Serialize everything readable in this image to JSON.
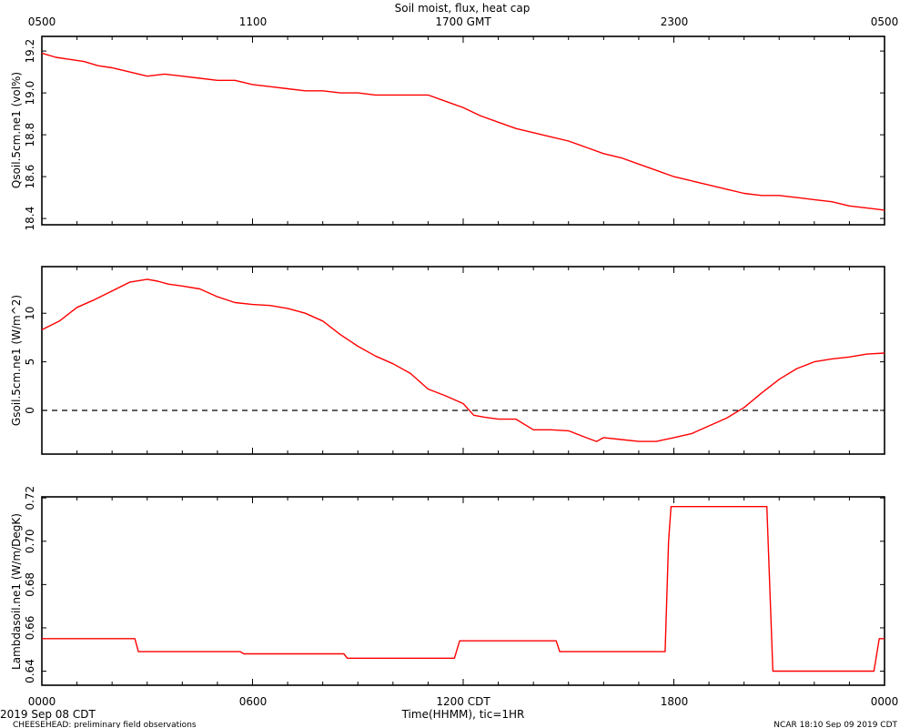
{
  "title": "Soil moist, flux, heat cap",
  "top_axis": {
    "ticks": [
      "0500",
      "1100",
      "1700 GMT",
      "2300",
      "0500"
    ]
  },
  "bottom_axis": {
    "ticks": [
      "0000",
      "0600",
      "1200 CDT",
      "1800",
      "0000"
    ],
    "label": "Time(HHMM), tic=1HR",
    "date_label": "2019 Sep 08 CDT"
  },
  "footer": {
    "left": "CHEESEHEAD: preliminary field observations",
    "right": "NCAR 18:10 Sep 09 2019 CDT"
  },
  "line_color": "#ff0000",
  "chart_data": [
    {
      "type": "line",
      "ylabel": "Qsoil.5cm.ne1 (vol%)",
      "ylim": [
        18.37,
        19.27
      ],
      "yticks": [
        18.4,
        18.6,
        18.8,
        19.0,
        19.2
      ],
      "ytick_labels": [
        "18.4",
        "18.6",
        "18.8",
        "19.0",
        "19.2"
      ],
      "xlim": [
        0,
        24
      ],
      "zero_line": false,
      "x": [
        0,
        0.4,
        0.8,
        1.2,
        1.6,
        2.0,
        2.5,
        3.0,
        3.5,
        4.0,
        4.5,
        5.0,
        5.5,
        6.0,
        6.5,
        7.0,
        7.5,
        8.0,
        8.5,
        9.0,
        9.5,
        10.0,
        10.5,
        11.0,
        11.5,
        12.0,
        12.5,
        13.0,
        13.5,
        14.0,
        14.5,
        15.0,
        15.5,
        16.0,
        16.5,
        17.0,
        17.5,
        18.0,
        18.5,
        19.0,
        19.5,
        20.0,
        20.5,
        21.0,
        21.5,
        22.0,
        22.5,
        23.0,
        23.5,
        24.0
      ],
      "y": [
        19.19,
        19.17,
        19.16,
        19.15,
        19.13,
        19.12,
        19.1,
        19.08,
        19.09,
        19.08,
        19.07,
        19.06,
        19.06,
        19.04,
        19.03,
        19.02,
        19.01,
        19.01,
        19.0,
        19.0,
        18.99,
        18.99,
        18.99,
        18.99,
        18.96,
        18.93,
        18.89,
        18.86,
        18.83,
        18.81,
        18.79,
        18.77,
        18.74,
        18.71,
        18.69,
        18.66,
        18.63,
        18.6,
        18.58,
        18.56,
        18.54,
        18.52,
        18.51,
        18.51,
        18.5,
        18.49,
        18.48,
        18.46,
        18.45,
        18.44
      ]
    },
    {
      "type": "line",
      "ylabel": "Gsoil.5cm.ne1 (W/m^2)",
      "ylim": [
        -4.5,
        14.8
      ],
      "yticks": [
        0,
        5,
        10
      ],
      "ytick_labels": [
        "0",
        "5",
        "10"
      ],
      "xlim": [
        0,
        24
      ],
      "zero_line": true,
      "x": [
        0,
        0.5,
        1.0,
        1.5,
        2.0,
        2.5,
        3.0,
        3.3,
        3.6,
        4.0,
        4.5,
        5.0,
        5.5,
        6.0,
        6.5,
        7.0,
        7.5,
        8.0,
        8.5,
        9.0,
        9.5,
        10.0,
        10.5,
        11.0,
        11.5,
        12.0,
        12.3,
        12.6,
        13.0,
        13.5,
        14.0,
        14.5,
        15.0,
        15.5,
        15.8,
        16.0,
        16.5,
        17.0,
        17.5,
        18.0,
        18.5,
        19.0,
        19.5,
        20.0,
        20.5,
        21.0,
        21.5,
        22.0,
        22.5,
        23.0,
        23.5,
        24.0
      ],
      "y": [
        8.3,
        9.2,
        10.6,
        11.4,
        12.3,
        13.2,
        13.5,
        13.3,
        13.0,
        12.8,
        12.5,
        11.7,
        11.1,
        10.9,
        10.8,
        10.5,
        10.0,
        9.2,
        7.8,
        6.6,
        5.6,
        4.8,
        3.8,
        2.2,
        1.5,
        0.7,
        -0.5,
        -0.7,
        -0.9,
        -0.9,
        -2.0,
        -2.0,
        -2.1,
        -2.8,
        -3.2,
        -2.8,
        -3.0,
        -3.2,
        -3.2,
        -2.8,
        -2.4,
        -1.6,
        -0.8,
        0.3,
        1.8,
        3.2,
        4.3,
        5.0,
        5.3,
        5.5,
        5.8,
        5.9
      ]
    },
    {
      "type": "line",
      "ylabel": "Lambdasoil.ne1 (W/m/DegK)",
      "ylim": [
        0.6335,
        0.7205
      ],
      "yticks": [
        0.64,
        0.66,
        0.68,
        0.7,
        0.72
      ],
      "ytick_labels": [
        "0.64",
        "0.66",
        "0.68",
        "0.70",
        "0.72"
      ],
      "xlim": [
        0,
        24
      ],
      "zero_line": false,
      "x": [
        0,
        2.65,
        2.75,
        5.65,
        5.75,
        8.6,
        8.7,
        11.75,
        11.9,
        14.65,
        14.75,
        17.75,
        17.85,
        17.92,
        20.65,
        20.82,
        23.7,
        23.85,
        24.0
      ],
      "y": [
        0.655,
        0.655,
        0.649,
        0.649,
        0.648,
        0.648,
        0.646,
        0.646,
        0.654,
        0.654,
        0.649,
        0.649,
        0.7,
        0.716,
        0.716,
        0.64,
        0.64,
        0.655,
        0.655
      ]
    }
  ]
}
